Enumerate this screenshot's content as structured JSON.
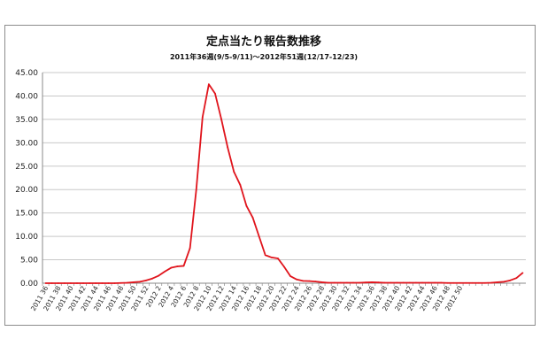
{
  "chart_data": {
    "type": "line",
    "title": "定点当たり報告数推移",
    "subtitle": "2011年36週(9/5-9/11)～2012年51週(12/17-12/23)",
    "xlabel": "",
    "ylabel": "",
    "ylim": [
      0,
      45
    ],
    "yticks": [
      "0.00",
      "5.00",
      "10.00",
      "15.00",
      "20.00",
      "25.00",
      "30.00",
      "35.00",
      "40.00",
      "45.00"
    ],
    "grid": true,
    "legend": "none",
    "line_color": "#e0141c",
    "x_tick_labels": [
      "2011 36",
      "2011 38",
      "2011 40",
      "2011 42",
      "2011 44",
      "2011 46",
      "2011 48",
      "2011 50",
      "2011 52",
      "2012 2",
      "2012 4",
      "2012 6",
      "2012 8",
      "2012 10",
      "2012 12",
      "2012 14",
      "2012 16",
      "2012 18",
      "2012 20",
      "2012 22",
      "2012 24",
      "2012 26",
      "2012 28",
      "2012 30",
      "2012 32",
      "2012 34",
      "2012 36",
      "2012 38",
      "2012 40",
      "2012 42",
      "2012 44",
      "2012 46",
      "2012 48",
      "2012 50"
    ],
    "series": [
      {
        "values": [
          0.0,
          0.0,
          0.0,
          0.0,
          0.0,
          0.0,
          0.0,
          0.0,
          0.0,
          0.0,
          0.0,
          0.0,
          0.05,
          0.1,
          0.2,
          0.3,
          0.6,
          1.0,
          1.6,
          2.5,
          3.3,
          3.6,
          3.7,
          7.5,
          20.0,
          35.5,
          42.5,
          40.5,
          35.0,
          29.0,
          23.8,
          21.0,
          16.5,
          14.0,
          10.0,
          6.0,
          5.5,
          5.3,
          3.5,
          1.5,
          0.8,
          0.5,
          0.45,
          0.35,
          0.2,
          0.1,
          0.1,
          0.1,
          0.1,
          0.1,
          0.1,
          0.15,
          0.2,
          0.15,
          0.1,
          0.1,
          0.1,
          0.1,
          0.1,
          0.1,
          0.1,
          0.1,
          0.1,
          0.1,
          0.05,
          0.05,
          0.05,
          0.05,
          0.05,
          0.05,
          0.05,
          0.1,
          0.2,
          0.3,
          0.6,
          1.1,
          2.2
        ]
      }
    ]
  }
}
